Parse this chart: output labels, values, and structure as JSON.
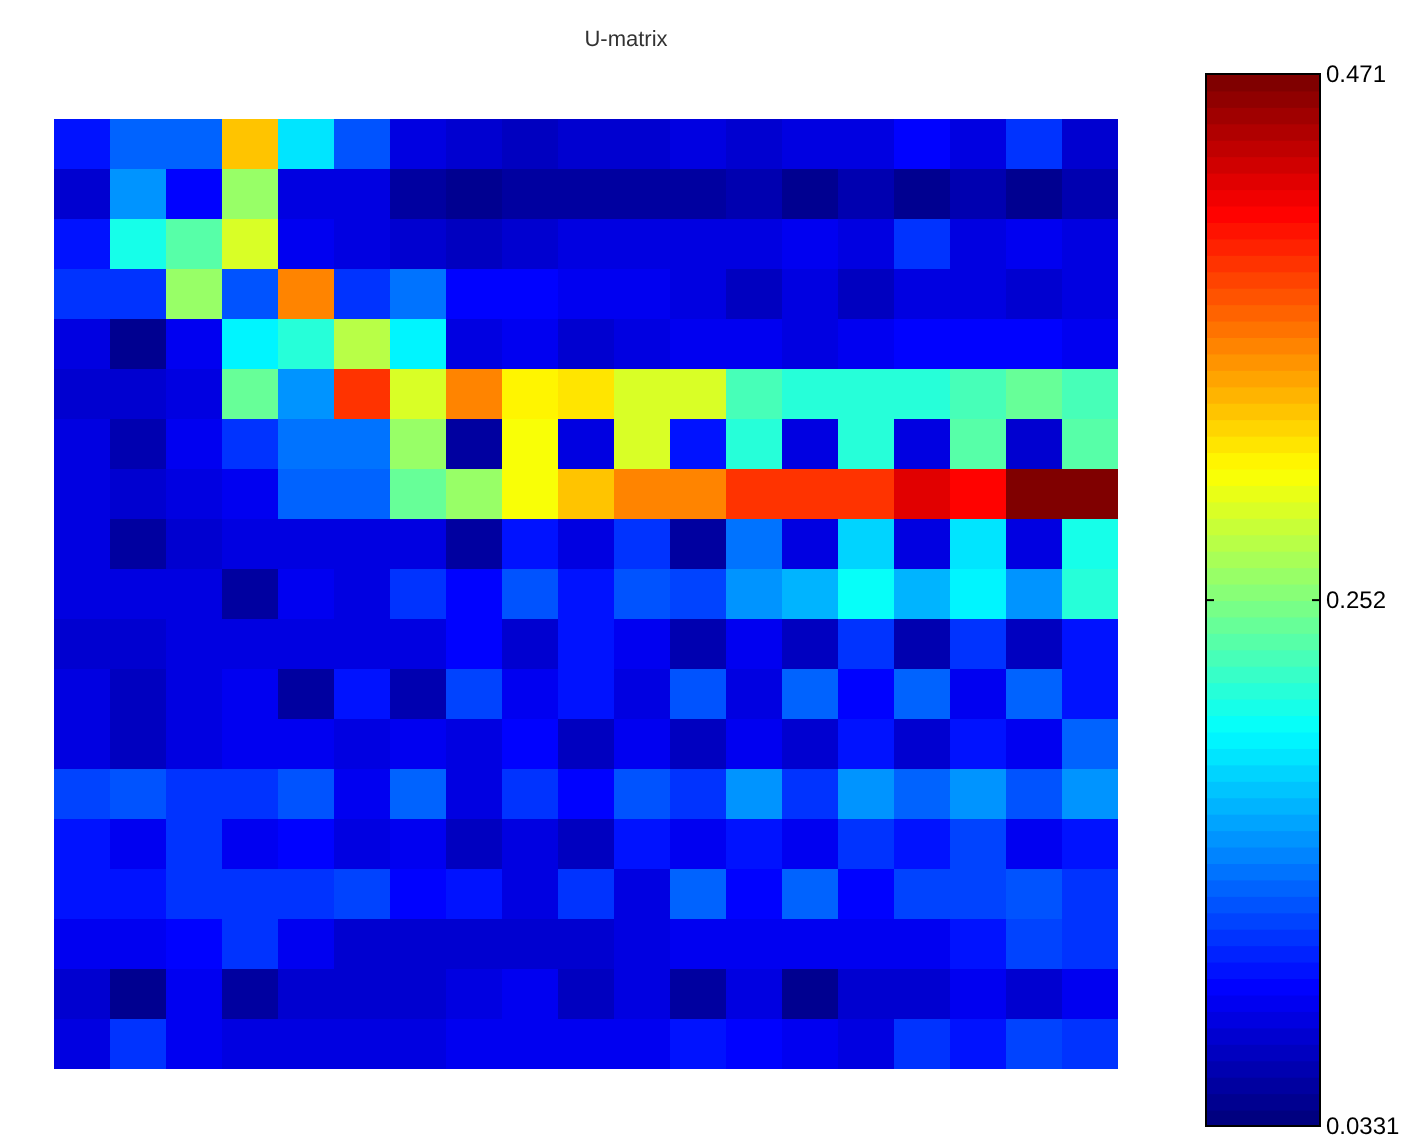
{
  "chart_data": {
    "type": "heatmap",
    "title": "U-matrix",
    "categories": [
      null,
      null,
      null,
      null,
      null,
      null,
      null,
      null,
      null,
      null,
      null,
      null,
      null,
      null,
      null,
      null,
      null,
      null,
      null
    ],
    "y_categories": [
      null,
      null,
      null,
      null,
      null,
      null,
      null,
      null,
      null,
      null,
      null,
      null,
      null,
      null,
      null,
      null,
      null,
      null,
      null
    ],
    "cells": [
      [
        0.1,
        0.135,
        0.135,
        0.33,
        0.19,
        0.125,
        0.075,
        0.07,
        0.065,
        0.07,
        0.07,
        0.08,
        0.07,
        0.075,
        0.075,
        0.09,
        0.08,
        0.11,
        0.07
      ],
      [
        0.07,
        0.15,
        0.09,
        0.26,
        0.075,
        0.08,
        0.05,
        0.045,
        0.05,
        0.05,
        0.05,
        0.05,
        0.06,
        0.045,
        0.06,
        0.045,
        0.06,
        0.045,
        0.06
      ],
      [
        0.1,
        0.21,
        0.235,
        0.29,
        0.085,
        0.08,
        0.07,
        0.065,
        0.07,
        0.075,
        0.08,
        0.08,
        0.075,
        0.085,
        0.075,
        0.115,
        0.08,
        0.085,
        0.075
      ],
      [
        0.11,
        0.11,
        0.26,
        0.125,
        0.355,
        0.115,
        0.14,
        0.09,
        0.088,
        0.085,
        0.085,
        0.08,
        0.065,
        0.075,
        0.065,
        0.075,
        0.075,
        0.07,
        0.075
      ],
      [
        0.075,
        0.045,
        0.085,
        0.195,
        0.215,
        0.275,
        0.195,
        0.08,
        0.085,
        0.07,
        0.075,
        0.085,
        0.085,
        0.08,
        0.085,
        0.088,
        0.088,
        0.088,
        0.085
      ],
      [
        0.07,
        0.07,
        0.08,
        0.24,
        0.155,
        0.395,
        0.29,
        0.355,
        0.31,
        0.32,
        0.29,
        0.29,
        0.23,
        0.215,
        0.215,
        0.215,
        0.225,
        0.24,
        0.23
      ],
      [
        0.075,
        0.055,
        0.085,
        0.115,
        0.14,
        0.14,
        0.26,
        0.05,
        0.305,
        0.075,
        0.29,
        0.1,
        0.215,
        0.08,
        0.215,
        0.08,
        0.235,
        0.07,
        0.235
      ],
      [
        0.075,
        0.07,
        0.08,
        0.085,
        0.135,
        0.135,
        0.245,
        0.265,
        0.3,
        0.33,
        0.36,
        0.36,
        0.395,
        0.39,
        0.395,
        0.425,
        0.41,
        0.465,
        0.465
      ],
      [
        0.075,
        0.05,
        0.07,
        0.075,
        0.075,
        0.08,
        0.08,
        0.05,
        0.1,
        0.08,
        0.115,
        0.05,
        0.14,
        0.08,
        0.18,
        0.075,
        0.19,
        0.075,
        0.21
      ],
      [
        0.075,
        0.08,
        0.075,
        0.05,
        0.085,
        0.075,
        0.115,
        0.09,
        0.125,
        0.1,
        0.125,
        0.12,
        0.15,
        0.165,
        0.2,
        0.165,
        0.195,
        0.155,
        0.215
      ],
      [
        0.07,
        0.07,
        0.075,
        0.075,
        0.075,
        0.075,
        0.08,
        0.09,
        0.07,
        0.1,
        0.085,
        0.06,
        0.085,
        0.065,
        0.115,
        0.06,
        0.115,
        0.065,
        0.1
      ],
      [
        0.08,
        0.065,
        0.075,
        0.085,
        0.05,
        0.1,
        0.06,
        0.12,
        0.085,
        0.1,
        0.08,
        0.125,
        0.075,
        0.13,
        0.09,
        0.13,
        0.085,
        0.135,
        0.1
      ],
      [
        0.075,
        0.065,
        0.075,
        0.085,
        0.085,
        0.08,
        0.085,
        0.08,
        0.09,
        0.065,
        0.085,
        0.065,
        0.085,
        0.07,
        0.1,
        0.07,
        0.1,
        0.085,
        0.13
      ],
      [
        0.12,
        0.125,
        0.115,
        0.11,
        0.125,
        0.085,
        0.13,
        0.08,
        0.11,
        0.09,
        0.125,
        0.115,
        0.15,
        0.115,
        0.155,
        0.13,
        0.155,
        0.125,
        0.155
      ],
      [
        0.1,
        0.085,
        0.11,
        0.085,
        0.09,
        0.08,
        0.085,
        0.065,
        0.08,
        0.065,
        0.1,
        0.085,
        0.1,
        0.085,
        0.115,
        0.1,
        0.12,
        0.085,
        0.1
      ],
      [
        0.1,
        0.1,
        0.115,
        0.115,
        0.11,
        0.12,
        0.09,
        0.1,
        0.08,
        0.115,
        0.075,
        0.135,
        0.09,
        0.135,
        0.09,
        0.12,
        0.12,
        0.125,
        0.115
      ],
      [
        0.085,
        0.085,
        0.09,
        0.11,
        0.085,
        0.07,
        0.07,
        0.07,
        0.07,
        0.07,
        0.08,
        0.085,
        0.085,
        0.085,
        0.085,
        0.085,
        0.1,
        0.12,
        0.11
      ],
      [
        0.07,
        0.045,
        0.085,
        0.05,
        0.07,
        0.07,
        0.07,
        0.075,
        0.085,
        0.065,
        0.075,
        0.05,
        0.08,
        0.045,
        0.07,
        0.07,
        0.085,
        0.07,
        0.085
      ],
      [
        0.075,
        0.115,
        0.085,
        0.08,
        0.075,
        0.075,
        0.075,
        0.085,
        0.085,
        0.085,
        0.085,
        0.1,
        0.09,
        0.085,
        0.08,
        0.115,
        0.1,
        0.12,
        0.115
      ]
    ],
    "clim": [
      0.0331,
      0.471
    ],
    "cticks": [
      0.0331,
      0.252,
      0.471
    ]
  }
}
